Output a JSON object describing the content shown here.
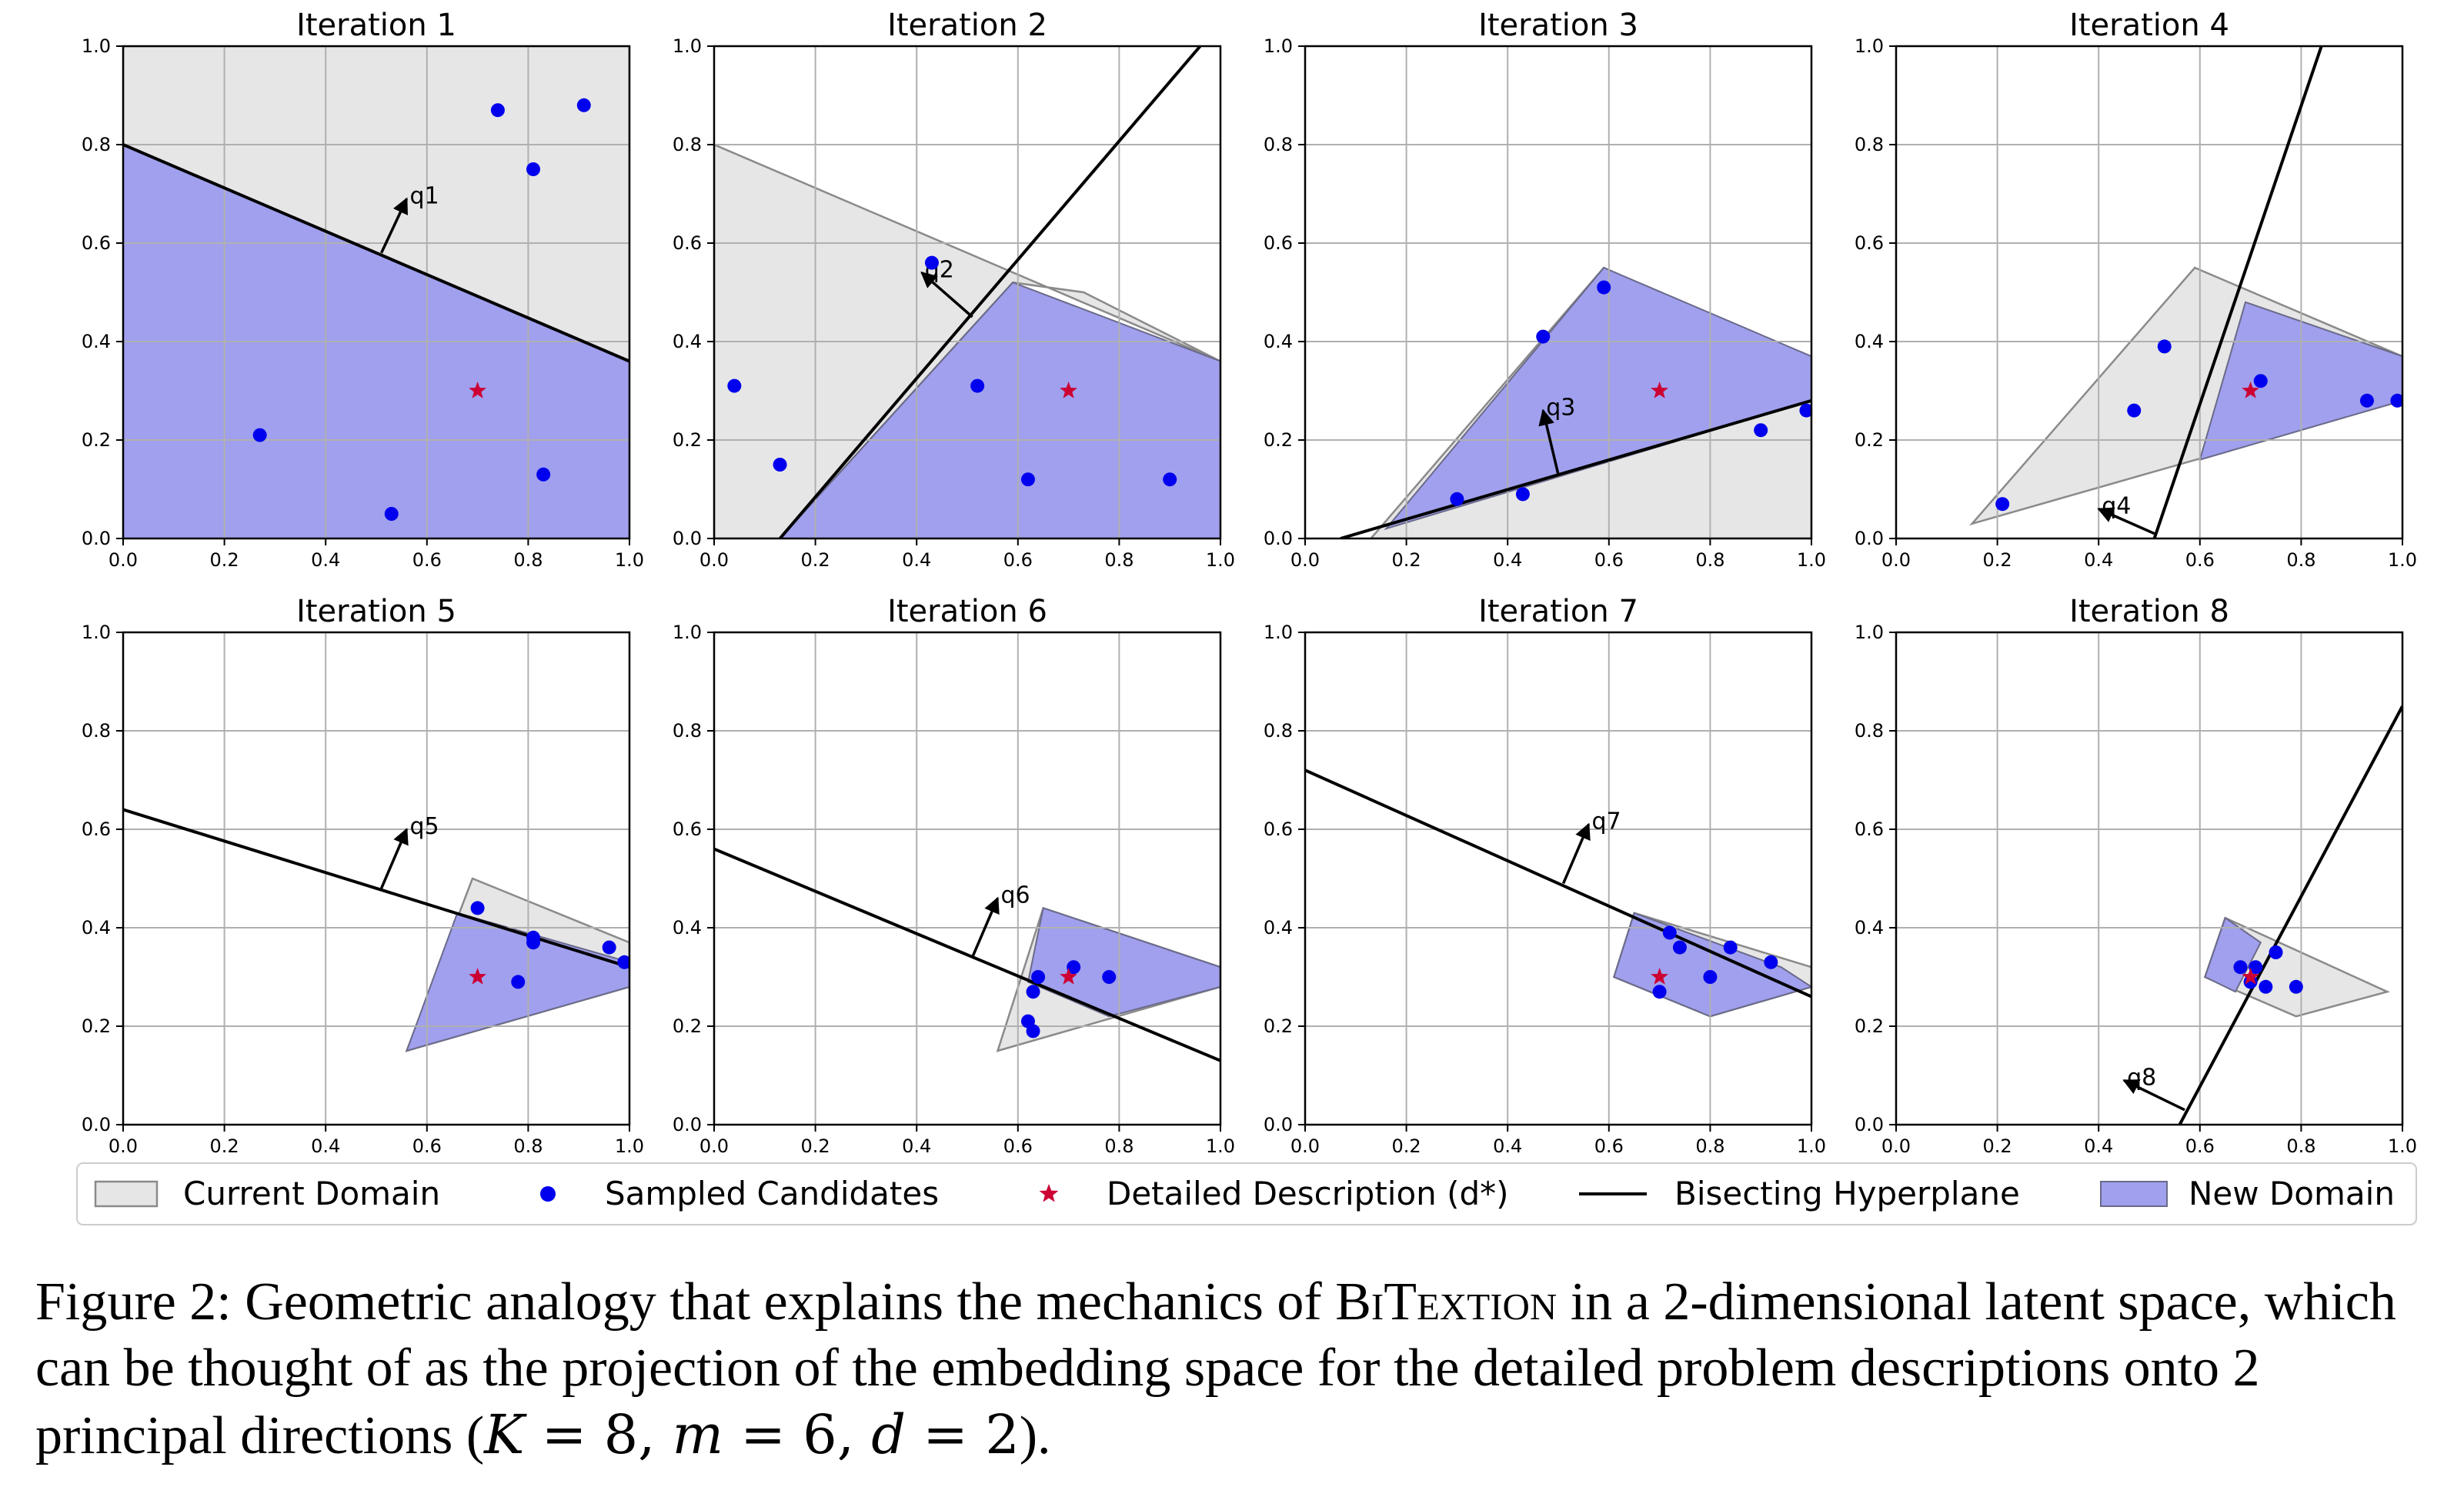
{
  "chart_data": {
    "type": "scatter",
    "xlim": [
      0,
      1
    ],
    "ylim": [
      0,
      1
    ],
    "ticks": [
      "0.0",
      "0.2",
      "0.4",
      "0.6",
      "0.8",
      "1.0"
    ],
    "grid": true,
    "colors": {
      "current_domain": "#e6e6e6",
      "new_domain": "#a0a0ee",
      "candidate": "#0000ee",
      "target": "#cc0033",
      "hyperplane": "#000000"
    },
    "legend": {
      "placement": "bottom",
      "entries": [
        "Current Domain",
        "Sampled Candidates",
        "Detailed Description (d*)",
        "Bisecting Hyperplane",
        "New Domain"
      ]
    },
    "panels": [
      {
        "title": "Iteration 1",
        "current_domain": [
          [
            0,
            1
          ],
          [
            1,
            1
          ],
          [
            1,
            0.36
          ],
          [
            0,
            0.8
          ]
        ],
        "new_domain": [
          [
            0,
            0
          ],
          [
            1,
            0
          ],
          [
            1,
            0.36
          ],
          [
            0,
            0.8
          ]
        ],
        "hyperplane": [
          [
            0,
            0.8
          ],
          [
            1,
            0.36
          ]
        ],
        "candidates": [
          [
            0.74,
            0.87
          ],
          [
            0.91,
            0.88
          ],
          [
            0.81,
            0.75
          ],
          [
            0.27,
            0.21
          ],
          [
            0.53,
            0.05
          ],
          [
            0.83,
            0.13
          ]
        ],
        "target": [
          0.7,
          0.3
        ],
        "arrow": {
          "label": "q1",
          "from": [
            0.51,
            0.58
          ],
          "to": [
            0.56,
            0.69
          ]
        }
      },
      {
        "title": "Iteration 2",
        "current_domain": [
          [
            0,
            0.8
          ],
          [
            0,
            0
          ],
          [
            0.13,
            0
          ],
          [
            0.59,
            0.52
          ],
          [
            0.73,
            0.5
          ],
          [
            1,
            0.36
          ]
        ],
        "new_domain": [
          [
            0.13,
            0
          ],
          [
            1,
            0
          ],
          [
            1,
            0.36
          ],
          [
            0.59,
            0.52
          ]
        ],
        "hyperplane": [
          [
            0.13,
            0
          ],
          [
            0.96,
            1.0
          ]
        ],
        "candidates": [
          [
            0.04,
            0.31
          ],
          [
            0.13,
            0.15
          ],
          [
            0.43,
            0.56
          ],
          [
            0.52,
            0.31
          ],
          [
            0.62,
            0.12
          ],
          [
            0.9,
            0.12
          ]
        ],
        "target": [
          0.7,
          0.3
        ],
        "arrow": {
          "label": "q2",
          "from": [
            0.51,
            0.45
          ],
          "to": [
            0.41,
            0.54
          ]
        }
      },
      {
        "title": "Iteration 3",
        "current_domain": [
          [
            0.13,
            0
          ],
          [
            1,
            0
          ],
          [
            1,
            0.36
          ],
          [
            0.59,
            0.55
          ]
        ],
        "new_domain": [
          [
            0.59,
            0.55
          ],
          [
            1,
            0.37
          ],
          [
            1,
            0.28
          ],
          [
            0.16,
            0.02
          ]
        ],
        "hyperplane": [
          [
            0.07,
            0
          ],
          [
            1,
            0.28
          ]
        ],
        "candidates": [
          [
            0.47,
            0.41
          ],
          [
            0.59,
            0.51
          ],
          [
            0.3,
            0.08
          ],
          [
            0.43,
            0.09
          ],
          [
            0.9,
            0.22
          ],
          [
            0.99,
            0.26
          ]
        ],
        "target": [
          0.7,
          0.3
        ],
        "arrow": {
          "label": "q3",
          "from": [
            0.5,
            0.13
          ],
          "to": [
            0.47,
            0.26
          ]
        }
      },
      {
        "title": "Iteration 4",
        "current_domain": [
          [
            0.15,
            0.03
          ],
          [
            0.59,
            0.55
          ],
          [
            1,
            0.37
          ],
          [
            1,
            0.28
          ]
        ],
        "new_domain": [
          [
            0.69,
            0.48
          ],
          [
            1,
            0.37
          ],
          [
            1,
            0.28
          ],
          [
            0.6,
            0.16
          ]
        ],
        "hyperplane": [
          [
            0.51,
            0
          ],
          [
            0.84,
            1.0
          ]
        ],
        "candidates": [
          [
            0.21,
            0.07
          ],
          [
            0.47,
            0.26
          ],
          [
            0.53,
            0.39
          ],
          [
            0.72,
            0.32
          ],
          [
            0.93,
            0.28
          ],
          [
            0.99,
            0.28
          ]
        ],
        "target": [
          0.7,
          0.3
        ],
        "arrow": {
          "label": "q4",
          "from": [
            0.51,
            0.01
          ],
          "to": [
            0.4,
            0.06
          ]
        }
      },
      {
        "title": "Iteration 5",
        "current_domain": [
          [
            0.69,
            0.5
          ],
          [
            1,
            0.37
          ],
          [
            1,
            0.28
          ],
          [
            0.56,
            0.15
          ]
        ],
        "new_domain": [
          [
            0.66,
            0.43
          ],
          [
            1,
            0.33
          ],
          [
            1,
            0.28
          ],
          [
            0.56,
            0.15
          ]
        ],
        "hyperplane": [
          [
            0,
            0.64
          ],
          [
            1,
            0.32
          ]
        ],
        "candidates": [
          [
            0.7,
            0.44
          ],
          [
            0.81,
            0.37
          ],
          [
            0.81,
            0.38
          ],
          [
            0.78,
            0.29
          ],
          [
            0.96,
            0.36
          ],
          [
            0.99,
            0.33
          ]
        ],
        "target": [
          0.7,
          0.3
        ],
        "arrow": {
          "label": "q5",
          "from": [
            0.51,
            0.48
          ],
          "to": [
            0.56,
            0.6
          ]
        }
      },
      {
        "title": "Iteration 6",
        "current_domain": [
          [
            0.65,
            0.44
          ],
          [
            1,
            0.32
          ],
          [
            1,
            0.28
          ],
          [
            0.56,
            0.15
          ]
        ],
        "new_domain": [
          [
            0.65,
            0.44
          ],
          [
            1,
            0.32
          ],
          [
            1,
            0.28
          ],
          [
            0.78,
            0.22
          ],
          [
            0.62,
            0.29
          ]
        ],
        "hyperplane": [
          [
            0,
            0.56
          ],
          [
            1,
            0.13
          ]
        ],
        "candidates": [
          [
            0.64,
            0.3
          ],
          [
            0.71,
            0.32
          ],
          [
            0.78,
            0.3
          ],
          [
            0.63,
            0.27
          ],
          [
            0.62,
            0.21
          ],
          [
            0.63,
            0.19
          ]
        ],
        "target": [
          0.7,
          0.3
        ],
        "arrow": {
          "label": "q6",
          "from": [
            0.51,
            0.34
          ],
          "to": [
            0.56,
            0.46
          ]
        }
      },
      {
        "title": "Iteration 7",
        "current_domain": [
          [
            0.65,
            0.43
          ],
          [
            1,
            0.32
          ],
          [
            1,
            0.28
          ],
          [
            0.8,
            0.22
          ],
          [
            0.61,
            0.3
          ]
        ],
        "new_domain": [
          [
            0.65,
            0.43
          ],
          [
            0.94,
            0.32
          ],
          [
            1,
            0.28
          ],
          [
            0.8,
            0.22
          ],
          [
            0.61,
            0.3
          ]
        ],
        "hyperplane": [
          [
            0,
            0.72
          ],
          [
            1,
            0.26
          ]
        ],
        "candidates": [
          [
            0.72,
            0.39
          ],
          [
            0.74,
            0.36
          ],
          [
            0.84,
            0.36
          ],
          [
            0.92,
            0.33
          ],
          [
            0.8,
            0.3
          ],
          [
            0.7,
            0.27
          ]
        ],
        "target": [
          0.7,
          0.3
        ],
        "arrow": {
          "label": "q7",
          "from": [
            0.51,
            0.49
          ],
          "to": [
            0.56,
            0.61
          ]
        }
      },
      {
        "title": "Iteration 8",
        "current_domain": [
          [
            0.65,
            0.42
          ],
          [
            0.97,
            0.27
          ],
          [
            0.79,
            0.22
          ],
          [
            0.61,
            0.3
          ]
        ],
        "new_domain": [
          [
            0.65,
            0.42
          ],
          [
            0.72,
            0.37
          ],
          [
            0.67,
            0.27
          ],
          [
            0.61,
            0.3
          ]
        ],
        "hyperplane": [
          [
            0.56,
            0
          ],
          [
            1,
            0.85
          ]
        ],
        "candidates": [
          [
            0.68,
            0.32
          ],
          [
            0.71,
            0.32
          ],
          [
            0.75,
            0.35
          ],
          [
            0.73,
            0.28
          ],
          [
            0.79,
            0.28
          ],
          [
            0.7,
            0.29
          ]
        ],
        "target": [
          0.7,
          0.3
        ],
        "arrow": {
          "label": "q8",
          "from": [
            0.57,
            0.03
          ],
          "to": [
            0.45,
            0.09
          ]
        }
      }
    ]
  },
  "caption": {
    "prefix": "Figure 2: Geometric analogy that explains the mechanics of ",
    "name": "BiTextion",
    "suffix": " in a 2-dimensional latent space, which can be thought of as the projection of the embedding space for the detailed problem descriptions onto 2 principal directions (",
    "k_var": "K",
    "k_val": " = 8, ",
    "m_var": "m",
    "m_val": " = 6, ",
    "d_var": "d",
    "d_val": " = 2",
    "end": ")."
  }
}
